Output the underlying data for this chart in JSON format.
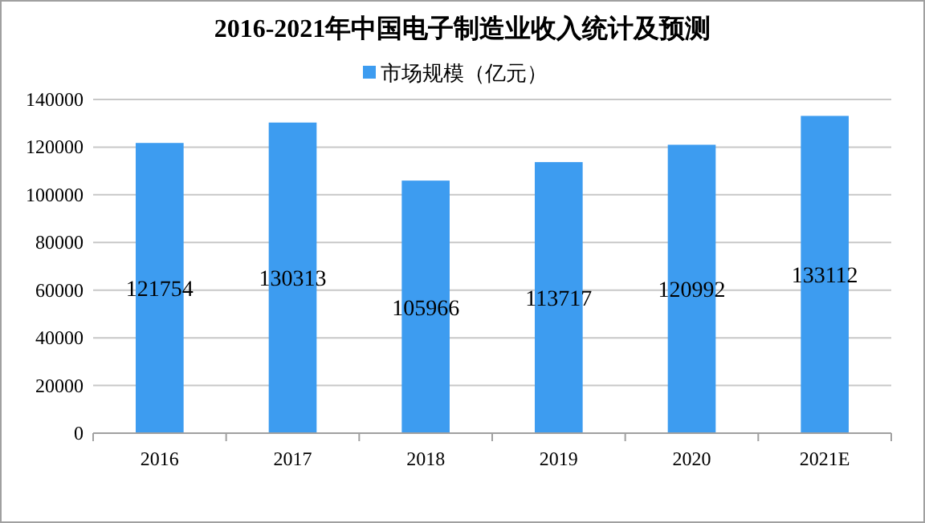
{
  "chart_data": {
    "type": "bar",
    "title": "2016-2021年中国电子制造业收入统计及预测",
    "categories": [
      "2016",
      "2017",
      "2018",
      "2019",
      "2020",
      "2021E"
    ],
    "series": [
      {
        "name": "市场规模（亿元）",
        "color": "#3d9cf0",
        "values": [
          121754,
          130313,
          105966,
          113717,
          120992,
          133112
        ]
      }
    ],
    "ylim": [
      0,
      140000
    ],
    "yticks": [
      0,
      20000,
      40000,
      60000,
      80000,
      100000,
      120000,
      140000
    ],
    "grid": "y",
    "legend": "top",
    "data_labels": true
  }
}
